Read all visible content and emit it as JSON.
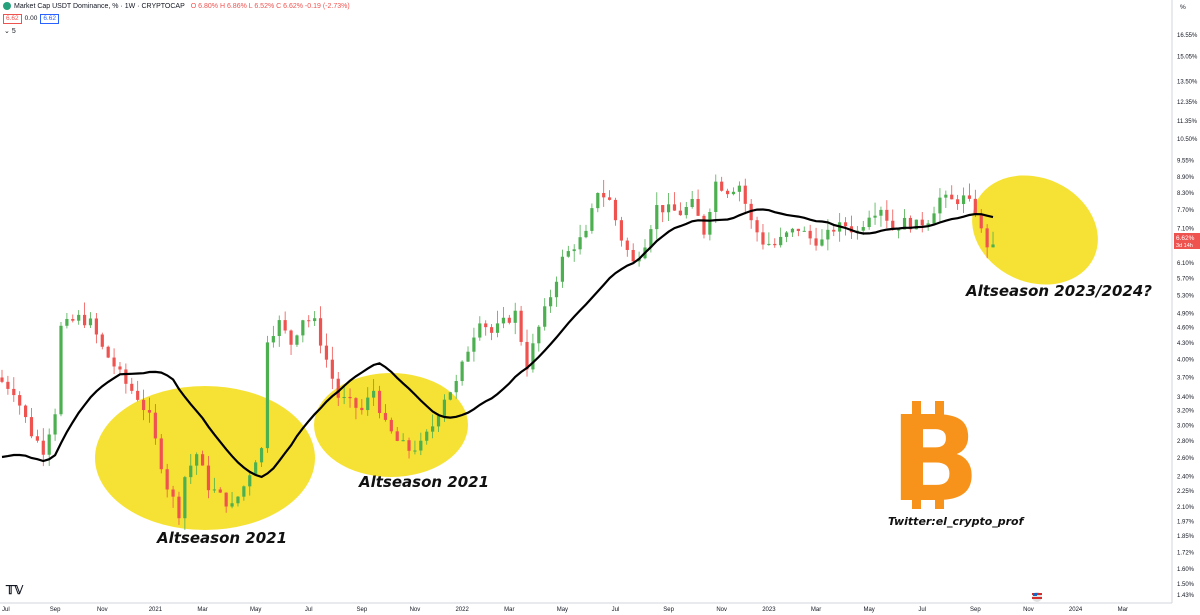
{
  "header": {
    "title": "Market Cap USDT Dominance, % · 1W · CRYPTOCAP",
    "ohlc": "O 6.80% H 6.86% L 6.52% C 6.62% -0.19 (-2.73%)",
    "price_box": "6.62",
    "change_value": "0.00",
    "price_box2": "6.62",
    "indicator": "5"
  },
  "annotations": {
    "alt1": "Altseason 2021",
    "alt2": "Altseason 2021",
    "alt3": "Altseason 2023/2024?",
    "twitter": "Twitter:el_crypto_prof"
  },
  "colors": {
    "up": "#4caf50",
    "down": "#ef5350",
    "ma": "#000000",
    "highlight": "#f5e02a",
    "bitcoin": "#f7931a"
  },
  "icons": [
    "tradingview-logo-icon",
    "usdt-logo-icon",
    "bitcoin-logo-icon",
    "us-flag-icon"
  ],
  "chart_data": {
    "type": "candlestick",
    "title": "Market Cap USDT Dominance, % · 1W · CRYPTOCAP",
    "y_scale": "log",
    "ylim": [
      1.38,
      18.3
    ],
    "y_ticks": [
      "16.55%",
      "15.05%",
      "13.50%",
      "12.35%",
      "11.35%",
      "10.50%",
      "9.55%",
      "8.90%",
      "8.30%",
      "7.70%",
      "7.10%",
      "6.60%",
      "6.10%",
      "5.70%",
      "5.30%",
      "4.90%",
      "4.60%",
      "4.30%",
      "4.00%",
      "3.70%",
      "3.40%",
      "3.20%",
      "3.00%",
      "2.80%",
      "2.60%",
      "2.40%",
      "2.25%",
      "2.10%",
      "1.97%",
      "1.85%",
      "1.72%",
      "1.60%",
      "1.50%",
      "1.43%"
    ],
    "y_tick_values": [
      16.55,
      15.05,
      13.5,
      12.35,
      11.35,
      10.5,
      9.55,
      8.9,
      8.3,
      7.7,
      7.1,
      6.6,
      6.1,
      5.7,
      5.3,
      4.9,
      4.6,
      4.3,
      4.0,
      3.7,
      3.4,
      3.2,
      3.0,
      2.8,
      2.6,
      2.4,
      2.25,
      2.1,
      1.97,
      1.85,
      1.72,
      1.6,
      1.5,
      1.43
    ],
    "y_axis_unit": "%",
    "x_ticks": [
      "Jul",
      "Sep",
      "Nov",
      "2021",
      "Mar",
      "May",
      "Jul",
      "Sep",
      "Nov",
      "2022",
      "Mar",
      "May",
      "Jul",
      "Sep",
      "Nov",
      "2023",
      "Mar",
      "May",
      "Jul",
      "Sep",
      "Nov",
      "2024",
      "Mar"
    ],
    "x_tick_weeks": [
      0,
      9,
      17,
      26,
      34,
      43,
      52,
      61,
      70,
      78,
      86,
      95,
      104,
      113,
      122,
      130,
      138,
      147,
      156,
      165,
      174,
      182,
      190
    ],
    "week_span": [
      0,
      198
    ],
    "last_price": "6.62%",
    "last_price_sub": "3d 14h",
    "waypoints": [
      [
        0,
        3.7
      ],
      [
        3,
        3.5
      ],
      [
        6,
        2.9
      ],
      [
        8,
        2.7
      ],
      [
        10,
        3.2
      ],
      [
        11,
        4.6
      ],
      [
        14,
        4.8
      ],
      [
        16,
        4.7
      ],
      [
        18,
        4.2
      ],
      [
        20,
        3.9
      ],
      [
        22,
        3.6
      ],
      [
        24,
        3.4
      ],
      [
        26,
        3.1
      ],
      [
        27,
        2.8
      ],
      [
        29,
        2.3
      ],
      [
        31,
        2.05
      ],
      [
        32,
        2.4
      ],
      [
        34,
        2.65
      ],
      [
        36,
        2.3
      ],
      [
        38,
        2.2
      ],
      [
        40,
        2.1
      ],
      [
        42,
        2.3
      ],
      [
        44,
        2.6
      ],
      [
        45,
        2.7
      ],
      [
        46,
        4.4
      ],
      [
        48,
        4.7
      ],
      [
        50,
        4.3
      ],
      [
        52,
        4.8
      ],
      [
        54,
        4.7
      ],
      [
        56,
        4.0
      ],
      [
        58,
        3.4
      ],
      [
        60,
        3.3
      ],
      [
        62,
        3.2
      ],
      [
        64,
        3.5
      ],
      [
        66,
        3.0
      ],
      [
        68,
        2.8
      ],
      [
        70,
        2.7
      ],
      [
        72,
        2.75
      ],
      [
        74,
        3.0
      ],
      [
        76,
        3.4
      ],
      [
        78,
        3.6
      ],
      [
        80,
        4.2
      ],
      [
        82,
        4.8
      ],
      [
        84,
        4.5
      ],
      [
        86,
        4.7
      ],
      [
        88,
        4.9
      ],
      [
        90,
        3.9
      ],
      [
        92,
        4.6
      ],
      [
        94,
        5.3
      ],
      [
        96,
        6.2
      ],
      [
        98,
        6.6
      ],
      [
        100,
        6.9
      ],
      [
        102,
        8.4
      ],
      [
        104,
        8.0
      ],
      [
        106,
        6.8
      ],
      [
        108,
        6.1
      ],
      [
        110,
        6.7
      ],
      [
        112,
        7.8
      ],
      [
        114,
        7.7
      ],
      [
        116,
        7.6
      ],
      [
        118,
        7.9
      ],
      [
        120,
        7.0
      ],
      [
        122,
        8.7
      ],
      [
        124,
        8.4
      ],
      [
        126,
        8.6
      ],
      [
        128,
        7.3
      ],
      [
        130,
        6.7
      ],
      [
        132,
        6.6
      ],
      [
        134,
        6.9
      ],
      [
        136,
        7.1
      ],
      [
        138,
        6.8
      ],
      [
        140,
        6.7
      ],
      [
        142,
        7.1
      ],
      [
        144,
        7.2
      ],
      [
        146,
        7.0
      ],
      [
        148,
        7.6
      ],
      [
        150,
        7.8
      ],
      [
        152,
        7.1
      ],
      [
        154,
        7.3
      ],
      [
        156,
        7.2
      ],
      [
        158,
        7.4
      ],
      [
        160,
        8.1
      ],
      [
        162,
        8.0
      ],
      [
        164,
        8.1
      ],
      [
        166,
        7.7
      ],
      [
        167,
        7.0
      ],
      [
        168,
        6.62
      ]
    ]
  }
}
